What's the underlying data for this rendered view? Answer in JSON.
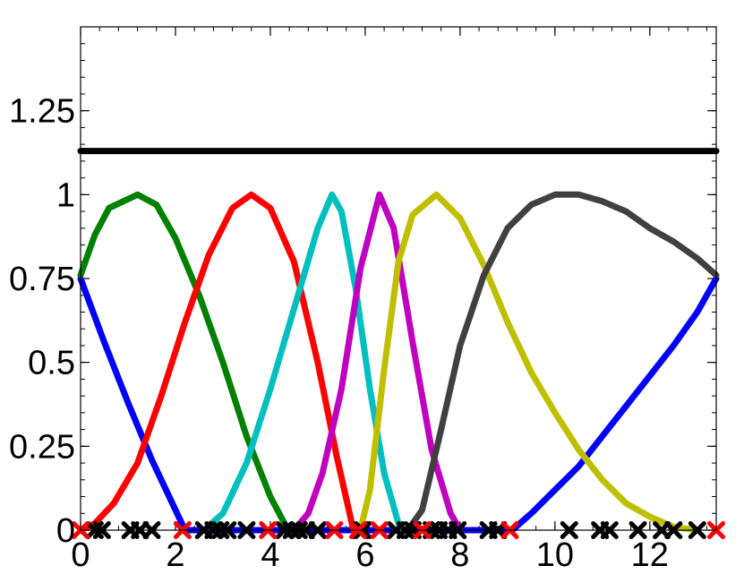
{
  "chart_data": {
    "type": "line",
    "title": "",
    "xlabel": "",
    "ylabel": "",
    "xlim": [
      0,
      13.4
    ],
    "ylim": [
      0,
      1.5
    ],
    "grid": false,
    "x_ticks": [
      0,
      2,
      4,
      6,
      8,
      10,
      12
    ],
    "x_tick_labels": [
      "0",
      "2",
      "4",
      "6",
      "8",
      "10",
      "12"
    ],
    "y_ticks": [
      0,
      0.25,
      0.5,
      0.75,
      1,
      1.25
    ],
    "y_tick_labels": [
      "0",
      "0.25",
      "0.5",
      "0.75",
      "1",
      "1.25"
    ],
    "series": [
      {
        "color": "#0000ff",
        "points": [
          [
            0,
            0.75
          ],
          [
            0.5,
            0.56
          ],
          [
            1,
            0.38
          ],
          [
            1.5,
            0.21
          ],
          [
            2,
            0.06
          ],
          [
            2.2,
            0
          ],
          [
            9.1,
            0
          ],
          [
            9.5,
            0.05
          ],
          [
            10,
            0.12
          ],
          [
            10.5,
            0.19
          ],
          [
            11,
            0.28
          ],
          [
            11.5,
            0.37
          ],
          [
            12,
            0.46
          ],
          [
            12.5,
            0.55
          ],
          [
            13,
            0.65
          ],
          [
            13.4,
            0.75
          ]
        ]
      },
      {
        "color": "#008000",
        "points": [
          [
            0,
            0.76
          ],
          [
            0.3,
            0.88
          ],
          [
            0.6,
            0.96
          ],
          [
            1.2,
            1.0
          ],
          [
            1.6,
            0.97
          ],
          [
            2,
            0.87
          ],
          [
            2.5,
            0.7
          ],
          [
            3,
            0.5
          ],
          [
            3.5,
            0.28
          ],
          [
            4,
            0.1
          ],
          [
            4.3,
            0.02
          ],
          [
            4.4,
            0
          ]
        ]
      },
      {
        "color": "#ff0000",
        "points": [
          [
            0,
            0
          ],
          [
            0.3,
            0.02
          ],
          [
            0.7,
            0.08
          ],
          [
            1.2,
            0.2
          ],
          [
            1.7,
            0.4
          ],
          [
            2.2,
            0.62
          ],
          [
            2.7,
            0.82
          ],
          [
            3.2,
            0.96
          ],
          [
            3.6,
            1.0
          ],
          [
            4,
            0.96
          ],
          [
            4.5,
            0.8
          ],
          [
            5,
            0.5
          ],
          [
            5.4,
            0.22
          ],
          [
            5.75,
            0
          ]
        ]
      },
      {
        "color": "#00bfbf",
        "points": [
          [
            2.6,
            0
          ],
          [
            3,
            0.05
          ],
          [
            3.5,
            0.2
          ],
          [
            4,
            0.42
          ],
          [
            4.5,
            0.66
          ],
          [
            5,
            0.9
          ],
          [
            5.3,
            1.0
          ],
          [
            5.5,
            0.95
          ],
          [
            5.8,
            0.72
          ],
          [
            6.1,
            0.42
          ],
          [
            6.4,
            0.17
          ],
          [
            6.7,
            0.02
          ],
          [
            6.8,
            0
          ]
        ]
      },
      {
        "color": "#bf00bf",
        "points": [
          [
            4.5,
            0
          ],
          [
            4.8,
            0.05
          ],
          [
            5.1,
            0.17
          ],
          [
            5.5,
            0.42
          ],
          [
            5.9,
            0.78
          ],
          [
            6.3,
            1.0
          ],
          [
            6.6,
            0.9
          ],
          [
            7,
            0.56
          ],
          [
            7.4,
            0.24
          ],
          [
            7.8,
            0.05
          ],
          [
            8,
            0
          ]
        ]
      },
      {
        "color": "#bfbf00",
        "points": [
          [
            5.9,
            0
          ],
          [
            6.1,
            0.12
          ],
          [
            6.4,
            0.48
          ],
          [
            6.7,
            0.8
          ],
          [
            7,
            0.94
          ],
          [
            7.5,
            1.0
          ],
          [
            8,
            0.93
          ],
          [
            8.5,
            0.79
          ],
          [
            9,
            0.62
          ],
          [
            9.5,
            0.47
          ],
          [
            10,
            0.35
          ],
          [
            10.5,
            0.24
          ],
          [
            11,
            0.15
          ],
          [
            11.5,
            0.08
          ],
          [
            12,
            0.04
          ],
          [
            12.5,
            0.01
          ],
          [
            13,
            0
          ]
        ]
      },
      {
        "color": "#404040",
        "points": [
          [
            6.9,
            0
          ],
          [
            7.2,
            0.06
          ],
          [
            7.6,
            0.3
          ],
          [
            8,
            0.55
          ],
          [
            8.5,
            0.76
          ],
          [
            9,
            0.9
          ],
          [
            9.5,
            0.97
          ],
          [
            10,
            1.0
          ],
          [
            10.5,
            1.0
          ],
          [
            11,
            0.98
          ],
          [
            11.5,
            0.95
          ],
          [
            12,
            0.9
          ],
          [
            12.5,
            0.86
          ],
          [
            13,
            0.81
          ],
          [
            13.4,
            0.76
          ]
        ]
      },
      {
        "color": "#000000",
        "points": [
          [
            0,
            1.13
          ],
          [
            13.4,
            1.13
          ]
        ]
      }
    ],
    "black_markers": [
      0.3,
      0.45,
      1.05,
      1.25,
      1.5,
      2.6,
      2.8,
      2.95,
      3.1,
      3.5,
      4.3,
      4.45,
      4.6,
      4.75,
      5.0,
      5.9,
      5.95,
      6.65,
      6.85,
      7.0,
      7.4,
      7.55,
      7.75,
      7.95,
      8.6,
      8.8,
      10.3,
      10.95,
      11.15,
      11.75,
      12.25,
      12.5,
      13.0
    ],
    "red_markers": [
      0,
      2.15,
      3.95,
      5.35,
      5.85,
      6.3,
      7.2,
      9.05,
      13.4
    ],
    "marker_colors": {
      "black": "#000000",
      "red": "#ff0000"
    }
  }
}
